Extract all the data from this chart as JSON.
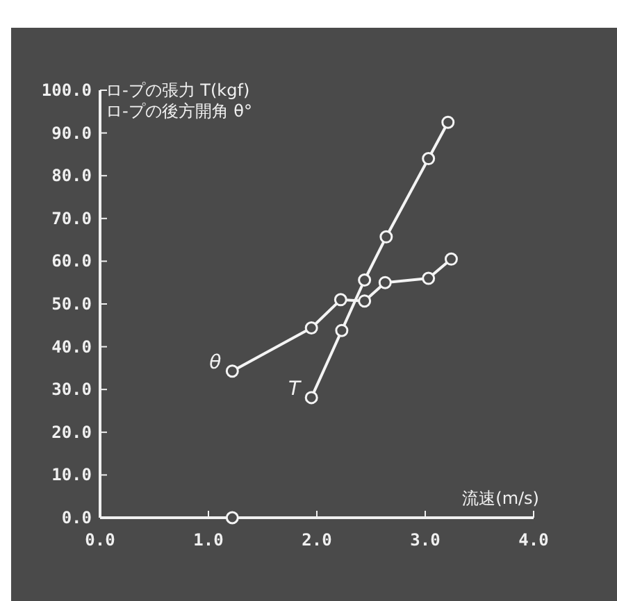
{
  "chart_data": {
    "type": "line",
    "ylabel": "ロ-プの張力 T(kgf)",
    "xlabel": "流速(m/s)",
    "annotations": [
      "ロ-プの後方開角 θ°"
    ],
    "series": [
      {
        "name": "T",
        "color": "#f4f4f4",
        "x": [
          1.95,
          2.23,
          2.44,
          2.64,
          3.03,
          3.21
        ],
        "values": [
          28.1,
          43.8,
          55.6,
          65.7,
          84,
          92.5
        ]
      },
      {
        "name": "θ",
        "color": "#f4f4f4",
        "x": [
          1.22,
          1.95,
          2.22,
          2.44,
          2.63,
          3.03,
          3.24
        ],
        "values": [
          34.3,
          44.4,
          51,
          50.7,
          55,
          56,
          60.5
        ]
      },
      {
        "type": "scatter",
        "color": "#f4f4f4",
        "x": [
          1.22
        ],
        "values": [
          0
        ]
      }
    ],
    "xlim": [
      0,
      4
    ],
    "xticks": [
      {
        "value": 0,
        "label": "0.0"
      },
      {
        "value": 1,
        "label": "1.0"
      },
      {
        "value": 2,
        "label": "2.0"
      },
      {
        "value": 3,
        "label": "3.0"
      },
      {
        "value": 4,
        "label": "4.0"
      }
    ],
    "ylim": [
      0,
      100
    ],
    "yticks": [
      {
        "value": 0,
        "label": "0.0"
      },
      {
        "value": 10,
        "label": "10.0"
      },
      {
        "value": 20,
        "label": "20.0"
      },
      {
        "value": 30,
        "label": "30.0"
      },
      {
        "value": 40,
        "label": "40.0"
      },
      {
        "value": 50,
        "label": "50.0"
      },
      {
        "value": 60,
        "label": "60.0"
      },
      {
        "value": 70,
        "label": "70.0"
      },
      {
        "value": 80,
        "label": "80.0"
      },
      {
        "value": 90,
        "label": "90.0"
      },
      {
        "value": 100,
        "label": "100.0"
      }
    ],
    "grid": false,
    "marker": "circle",
    "line_style": "solid"
  }
}
